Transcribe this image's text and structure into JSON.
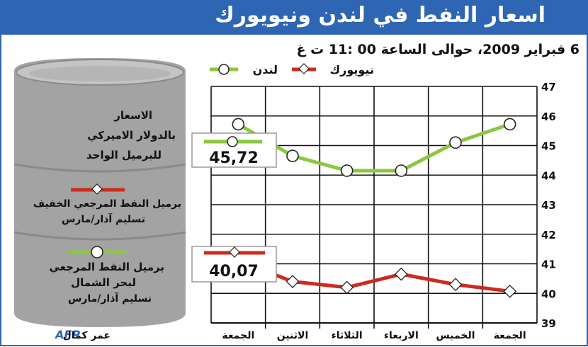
{
  "header": {
    "title": "اسعار النفط في لندن ونيويورك"
  },
  "subtitle": "6 فبراير 2009، حوالى الساعة 00 :11 ت غ",
  "legend": {
    "london": "لندن",
    "newyork": "نيويورك"
  },
  "barrel": {
    "unit_line1": "الاسعار",
    "unit_line2": "بالدولار الاميركي",
    "unit_line3": "للبرميل الواحد",
    "light_line1": "برميل النفط المرجعي الخفيف",
    "light_line2": "تسليم آذار/مارس",
    "brent_line1": "برميل النفط المرجعي",
    "brent_line2": "لبحر الشمال",
    "brent_line3": "تسليم آذار/مارس"
  },
  "callouts": {
    "london_value": "45,72",
    "newyork_value": "40,07"
  },
  "credit": {
    "author": "عمر كمال",
    "agency": "AFP"
  },
  "colors": {
    "header_bg": "#2f66b3",
    "london": "#8dc63f",
    "newyork": "#cc2b1d",
    "barrel": "#9a9a9a"
  },
  "chart_data": {
    "type": "line",
    "categories": [
      "الجمعة",
      "الخميس",
      "الاربعاء",
      "الثلاثاء",
      "الاثنين",
      "الجمعة"
    ],
    "ylim": [
      39,
      47
    ],
    "yticks": [
      "39",
      "40",
      "41",
      "42",
      "43",
      "44",
      "45",
      "46",
      "47"
    ],
    "series": [
      {
        "name": "لندن",
        "values": [
          45.72,
          45.1,
          44.15,
          44.15,
          44.65,
          45.72
        ]
      },
      {
        "name": "نيويورك",
        "values": [
          40.07,
          40.3,
          40.65,
          40.2,
          40.4,
          41.1
        ]
      }
    ]
  }
}
